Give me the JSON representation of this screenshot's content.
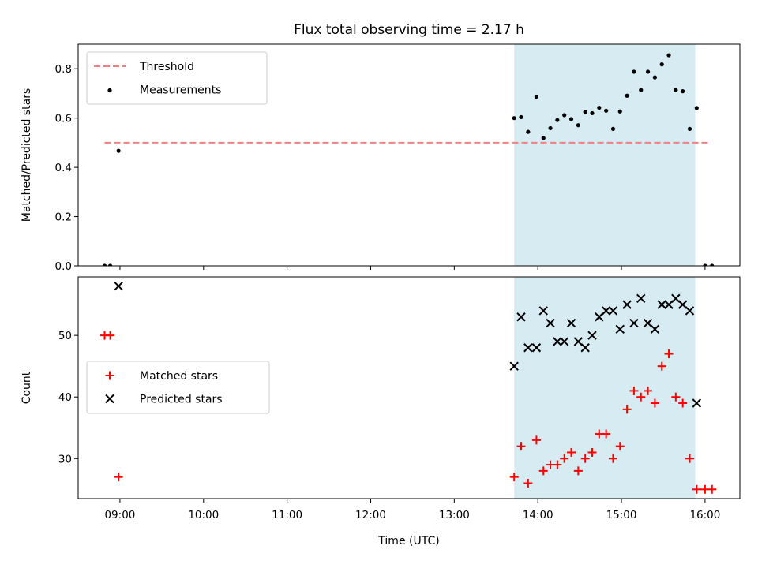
{
  "chart_data": [
    {
      "type": "scatter",
      "title": "Flux total observing time = 2.17 h",
      "xlabel": "",
      "ylabel": "Matched/Predicted stars",
      "xlim": [
        "08:30",
        "16:25"
      ],
      "ylim": [
        0,
        0.9
      ],
      "yticks": [
        0.0,
        0.2,
        0.4,
        0.6,
        0.8
      ],
      "yticklabels": [
        "0.0",
        "0.2",
        "0.4",
        "0.6",
        "0.8"
      ],
      "legend_position": "top-left",
      "shaded_region": {
        "x_start": "13:43",
        "x_end": "15:53",
        "color": "#add8e6"
      },
      "series": [
        {
          "name": "Threshold",
          "style": "dashed-line",
          "color": "#f08080",
          "x": [
            "08:49",
            "16:03"
          ],
          "y": [
            0.5,
            0.5
          ]
        },
        {
          "name": "Measurements",
          "style": "dot",
          "color": "#000000",
          "x": [
            "08:49",
            "08:53",
            "08:59",
            "13:43",
            "13:48",
            "13:53",
            "13:59",
            "14:04",
            "14:09",
            "14:14",
            "14:19",
            "14:24",
            "14:29",
            "14:34",
            "14:39",
            "14:44",
            "14:49",
            "14:54",
            "14:59",
            "15:04",
            "15:09",
            "15:14",
            "15:19",
            "15:24",
            "15:29",
            "15:34",
            "15:39",
            "15:44",
            "15:49",
            "15:54",
            "16:00",
            "16:05"
          ],
          "y": [
            0.0,
            0.0,
            0.467,
            0.6,
            0.604,
            0.544,
            0.687,
            0.519,
            0.559,
            0.592,
            0.612,
            0.596,
            0.571,
            0.625,
            0.62,
            0.642,
            0.63,
            0.556,
            0.627,
            0.691,
            0.788,
            0.714,
            0.788,
            0.765,
            0.818,
            0.855,
            0.714,
            0.709,
            0.556,
            0.641,
            0.0,
            0.0
          ]
        }
      ]
    },
    {
      "type": "scatter",
      "title": "",
      "xlabel": "Time (UTC)",
      "ylabel": "Count",
      "xlim": [
        "08:30",
        "16:25"
      ],
      "ylim": [
        23.5,
        59.5
      ],
      "yticks": [
        30,
        40,
        50
      ],
      "yticklabels": [
        "30",
        "40",
        "50"
      ],
      "xticks": [
        "09:00",
        "10:00",
        "11:00",
        "12:00",
        "13:00",
        "14:00",
        "15:00",
        "16:00"
      ],
      "xticklabels": [
        "09:00",
        "10:00",
        "11:00",
        "12:00",
        "13:00",
        "14:00",
        "15:00",
        "16:00"
      ],
      "legend_position": "center-left",
      "shaded_region": {
        "x_start": "13:43",
        "x_end": "15:53",
        "color": "#add8e6"
      },
      "series": [
        {
          "name": "Matched stars",
          "style": "plus",
          "color": "#ff0000",
          "x": [
            "08:49",
            "08:53",
            "08:59",
            "13:43",
            "13:48",
            "13:53",
            "13:59",
            "14:04",
            "14:09",
            "14:14",
            "14:19",
            "14:24",
            "14:29",
            "14:34",
            "14:39",
            "14:44",
            "14:49",
            "14:54",
            "14:59",
            "15:04",
            "15:09",
            "15:14",
            "15:19",
            "15:24",
            "15:29",
            "15:34",
            "15:39",
            "15:44",
            "15:49",
            "15:54",
            "16:00",
            "16:05"
          ],
          "y": [
            50,
            50,
            27,
            27,
            32,
            26,
            33,
            28,
            29,
            29,
            30,
            31,
            28,
            30,
            31,
            34,
            34,
            30,
            32,
            38,
            41,
            40,
            41,
            39,
            45,
            47,
            40,
            39,
            30,
            25,
            25,
            25
          ]
        },
        {
          "name": "Predicted stars",
          "style": "x",
          "color": "#000000",
          "x": [
            "08:59",
            "13:43",
            "13:48",
            "13:53",
            "13:59",
            "14:04",
            "14:09",
            "14:14",
            "14:19",
            "14:24",
            "14:29",
            "14:34",
            "14:39",
            "14:44",
            "14:49",
            "14:54",
            "14:59",
            "15:04",
            "15:09",
            "15:14",
            "15:19",
            "15:24",
            "15:29",
            "15:34",
            "15:39",
            "15:44",
            "15:49",
            "15:54"
          ],
          "y": [
            58,
            45,
            53,
            48,
            48,
            54,
            52,
            49,
            49,
            52,
            49,
            48,
            50,
            53,
            54,
            54,
            51,
            55,
            52,
            56,
            52,
            51,
            55,
            55,
            56,
            55,
            54,
            39
          ]
        }
      ]
    }
  ]
}
